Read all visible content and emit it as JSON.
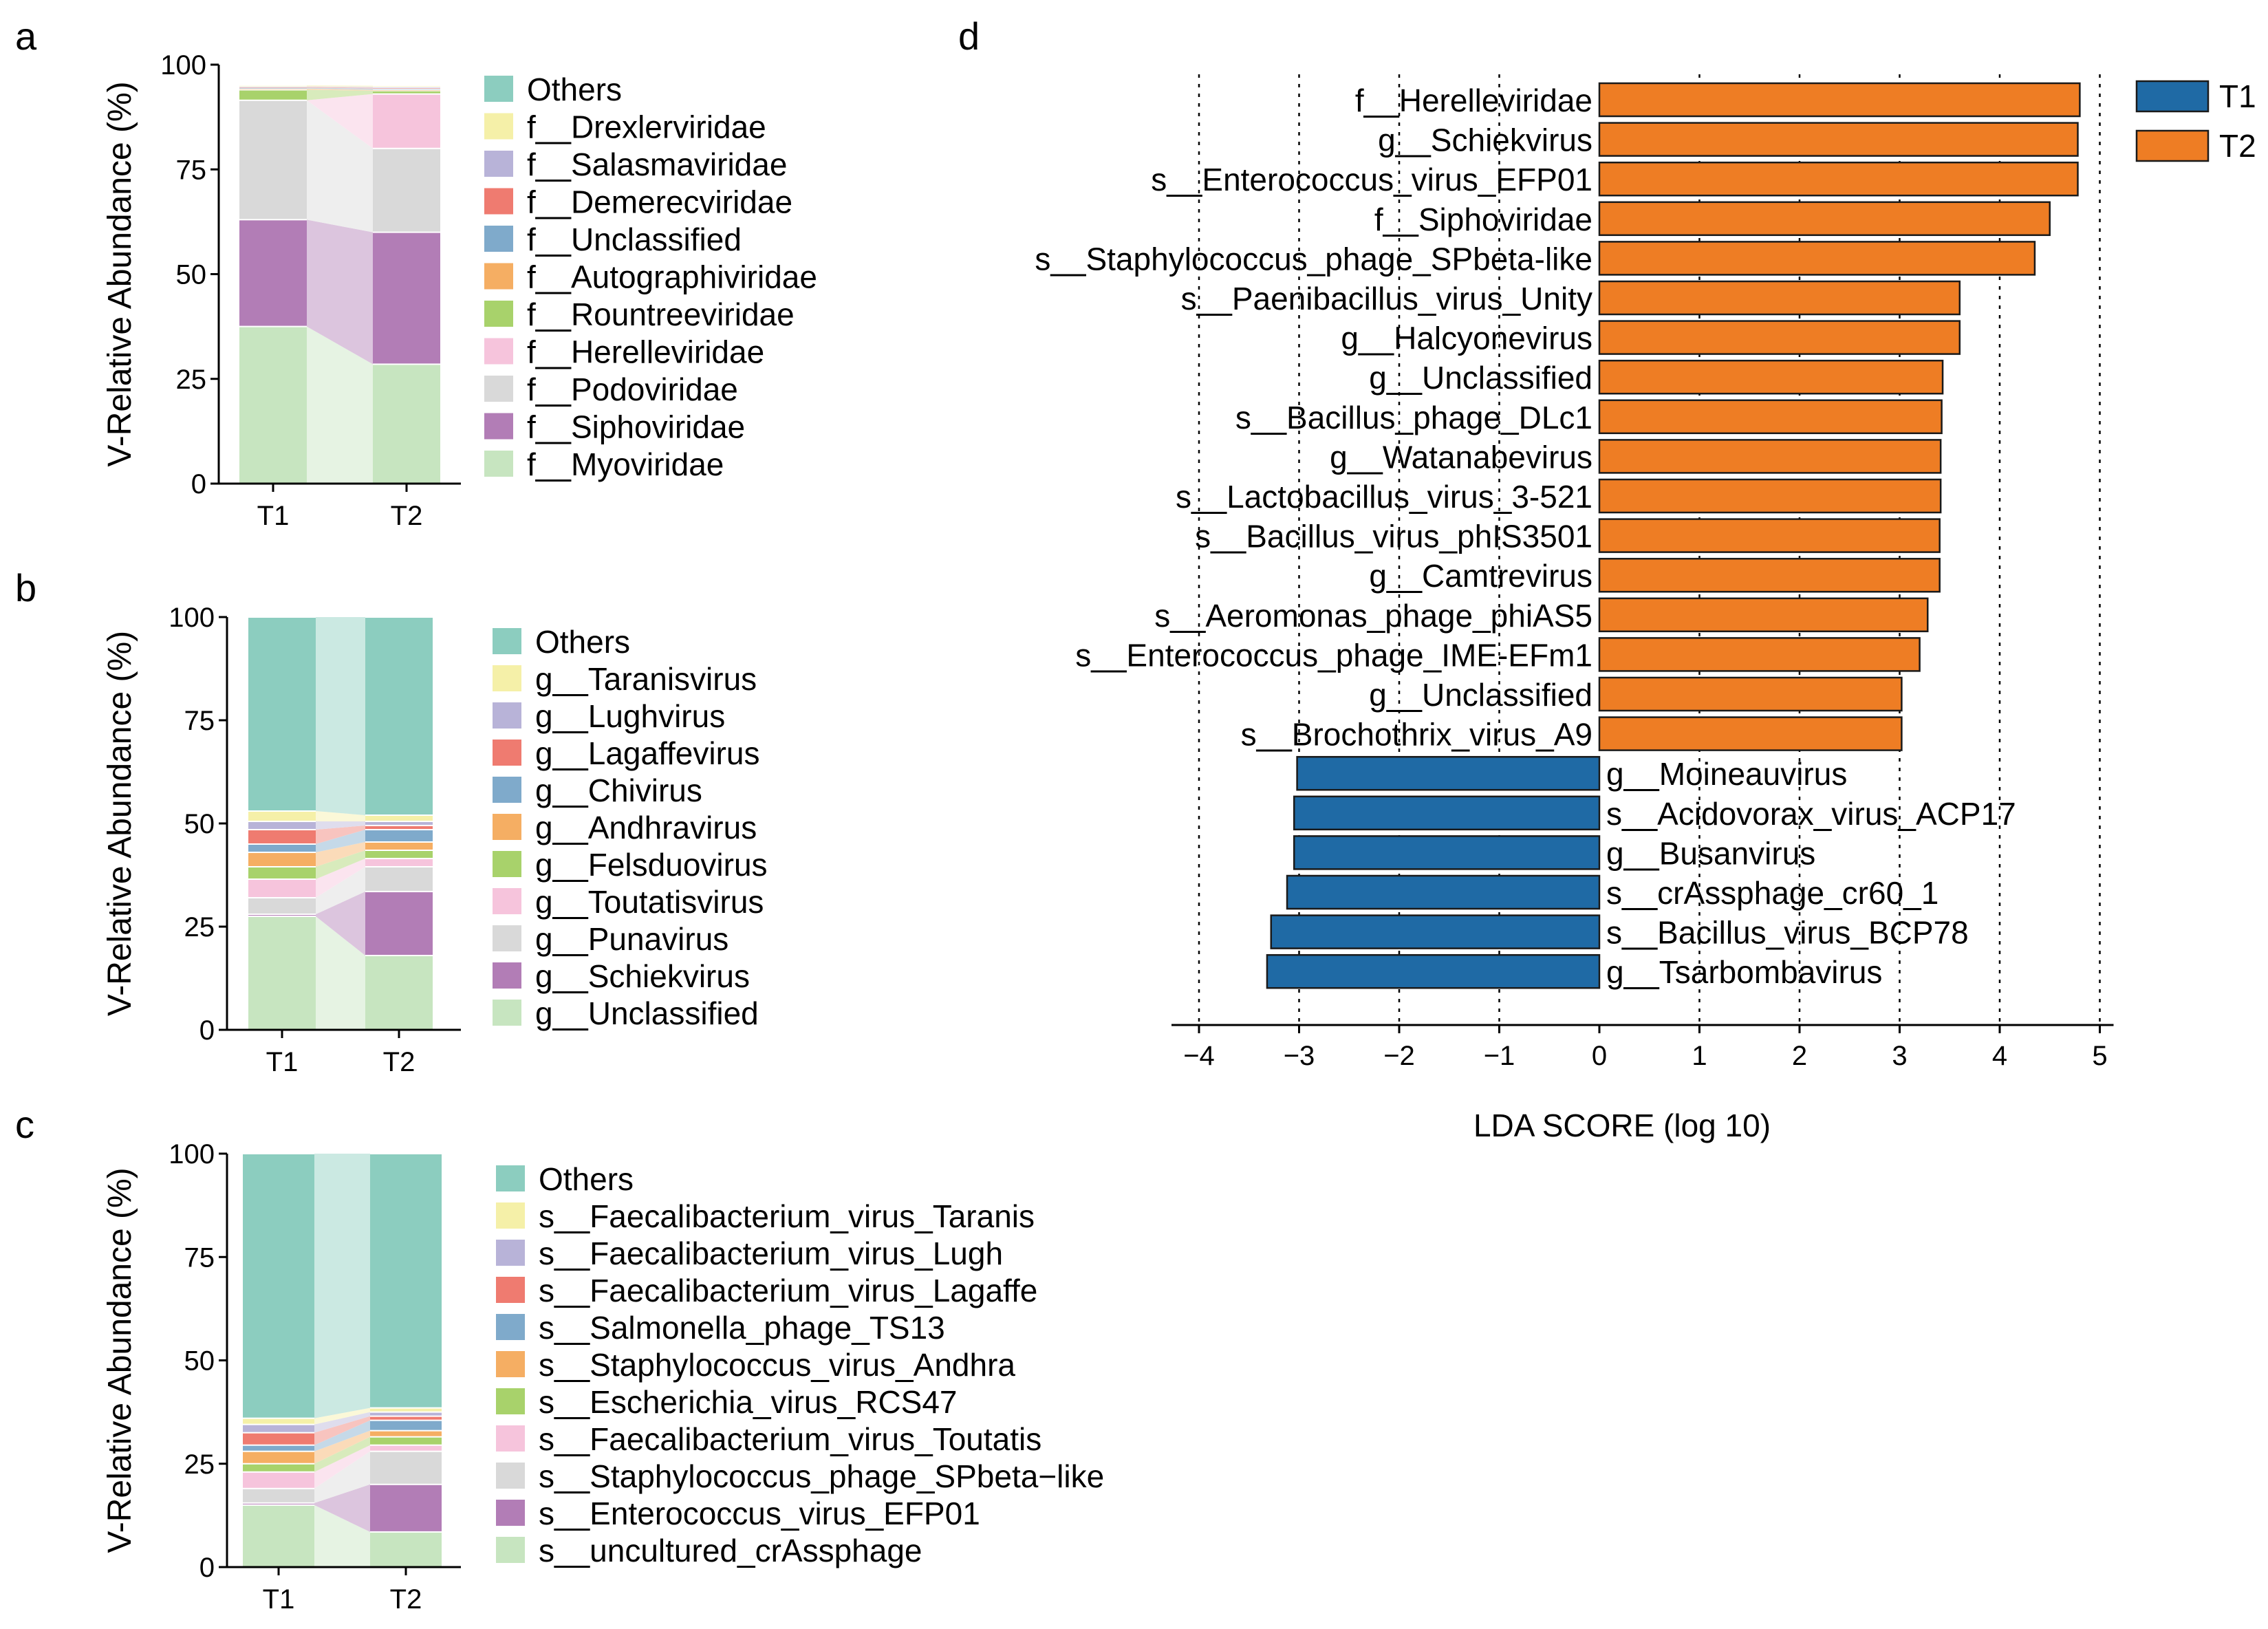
{
  "chart_data": [
    {
      "panel": "a",
      "type": "stacked-bar",
      "ylabel": "V-Relative Abundance (%)",
      "ylim": [
        0,
        100
      ],
      "yticks": [
        "0",
        "25",
        "50",
        "75",
        "100"
      ],
      "categories": [
        "T1",
        "T2"
      ],
      "legend_title": "",
      "series": [
        {
          "name": "f__Myoviridae",
          "color": "#c7e5c0",
          "values": [
            37.5,
            28.5
          ]
        },
        {
          "name": "f__Siphoviridae",
          "color": "#b27db6",
          "values": [
            25.5,
            31.5
          ]
        },
        {
          "name": "f__Podoviridae",
          "color": "#d9d9d9",
          "values": [
            28.5,
            20.0
          ]
        },
        {
          "name": "f__Herelleviridae",
          "color": "#f6c4dc",
          "values": [
            0.0,
            13.0
          ]
        },
        {
          "name": "f__Rountreeviridae",
          "color": "#a8d26b",
          "values": [
            2.5,
            0.8
          ]
        },
        {
          "name": "f__Autographiviridae",
          "color": "#f5ae63",
          "values": [
            0.3,
            0.2
          ]
        },
        {
          "name": "f__Unclassified",
          "color": "#7faacb",
          "values": [
            0.2,
            0.3
          ]
        },
        {
          "name": "f__Demerecviridae",
          "color": "#ef7b70",
          "values": [
            0.2,
            0.2
          ]
        },
        {
          "name": "f__Salasmaviridae",
          "color": "#b8b3d8",
          "values": [
            0.1,
            0.2
          ]
        },
        {
          "name": "f__Drexlerviridae",
          "color": "#f5f0a8",
          "values": [
            0.3,
            0.3
          ]
        },
        {
          "name": "Others",
          "color": "#8ccdbf",
          "values": [
            0.0,
            0.0
          ]
        }
      ]
    },
    {
      "panel": "b",
      "type": "stacked-bar",
      "ylabel": "V-Relative Abundance (%)",
      "ylim": [
        0,
        100
      ],
      "yticks": [
        "0",
        "25",
        "50",
        "75",
        "100"
      ],
      "categories": [
        "T1",
        "T2"
      ],
      "series": [
        {
          "name": "g__Unclassified",
          "color": "#c7e5c0",
          "values": [
            27.5,
            18.0
          ]
        },
        {
          "name": "g__Schiekvirus",
          "color": "#b27db6",
          "values": [
            0.5,
            15.5
          ]
        },
        {
          "name": "g__Punavirus",
          "color": "#d9d9d9",
          "values": [
            4.0,
            6.0
          ]
        },
        {
          "name": "g__Toutatisvirus",
          "color": "#f6c4dc",
          "values": [
            4.5,
            2.0
          ]
        },
        {
          "name": "g__Felsduovirus",
          "color": "#a8d26b",
          "values": [
            3.0,
            2.0
          ]
        },
        {
          "name": "g__Andhravirus",
          "color": "#f5ae63",
          "values": [
            3.5,
            2.0
          ]
        },
        {
          "name": "g__Chivirus",
          "color": "#7faacb",
          "values": [
            2.0,
            3.0
          ]
        },
        {
          "name": "g__Lagaffevirus",
          "color": "#ef7b70",
          "values": [
            3.5,
            1.0
          ]
        },
        {
          "name": "g__Lughvirus",
          "color": "#b8b3d8",
          "values": [
            2.0,
            1.0
          ]
        },
        {
          "name": "g__Taranisvirus",
          "color": "#f5f0a8",
          "values": [
            2.5,
            1.5
          ]
        },
        {
          "name": "Others",
          "color": "#8ccdbf",
          "values": [
            47.0,
            48.0
          ]
        }
      ]
    },
    {
      "panel": "c",
      "type": "stacked-bar",
      "ylabel": "V-Relative Abundance (%)",
      "ylim": [
        0,
        100
      ],
      "yticks": [
        "0",
        "25",
        "50",
        "75",
        "100"
      ],
      "categories": [
        "T1",
        "T2"
      ],
      "series": [
        {
          "name": "s__uncultured_crAssphage",
          "color": "#c7e5c0",
          "values": [
            15.0,
            8.5
          ]
        },
        {
          "name": "s__Enterococcus_virus_EFP01",
          "color": "#b27db6",
          "values": [
            0.5,
            11.5
          ]
        },
        {
          "name": "s__Staphylococcus_phage_SPbeta−like",
          "color": "#d9d9d9",
          "values": [
            3.5,
            8.0
          ]
        },
        {
          "name": "s__Faecalibacterium_virus_Toutatis",
          "color": "#f6c4dc",
          "values": [
            4.0,
            1.5
          ]
        },
        {
          "name": "s__Escherichia_virus_RCS47",
          "color": "#a8d26b",
          "values": [
            2.0,
            2.0
          ]
        },
        {
          "name": "s__Staphylococcus_virus_Andhra",
          "color": "#f5ae63",
          "values": [
            3.0,
            1.5
          ]
        },
        {
          "name": "s__Salmonella_phage_TS13",
          "color": "#7faacb",
          "values": [
            1.5,
            2.5
          ]
        },
        {
          "name": "s__Faecalibacterium_virus_Lagaffe",
          "color": "#ef7b70",
          "values": [
            3.0,
            1.0
          ]
        },
        {
          "name": "s__Faecalibacterium_virus_Lugh",
          "color": "#b8b3d8",
          "values": [
            2.0,
            1.0
          ]
        },
        {
          "name": "s__Faecalibacterium_virus_Taranis",
          "color": "#f5f0a8",
          "values": [
            1.5,
            1.0
          ]
        },
        {
          "name": "Others",
          "color": "#8ccdbf",
          "values": [
            64.0,
            61.5
          ]
        }
      ]
    },
    {
      "panel": "d",
      "type": "bar",
      "orientation": "horizontal",
      "xlabel": "LDA SCORE (log 10)",
      "xlim": [
        -4.3,
        5.1
      ],
      "xticks": [
        -4,
        -3,
        -2,
        -1,
        0,
        1,
        2,
        3,
        4,
        5
      ],
      "xtick_labels": [
        "−4",
        "−3",
        "−2",
        "−1",
        "0",
        "1",
        "2",
        "3",
        "4",
        "5"
      ],
      "grid": "vertical dotted",
      "legend": [
        {
          "name": "T1",
          "color": "#1f6aa5"
        },
        {
          "name": "T2",
          "color": "#ee7d24"
        }
      ],
      "legend_position": "top-right",
      "categories": [
        "f__Herelleviridae",
        "g__Schiekvirus",
        "s__Enterococcus_virus_EFP01",
        "f__Siphoviridae",
        "s__Staphylococcus_phage_SPbeta-like",
        "s__Paenibacillus_virus_Unity",
        "g__Halcyonevirus",
        "g__Unclassified",
        "s__Bacillus_phage_DLc1",
        "g__Watanabevirus",
        "s__Lactobacillus_virus_3-521",
        "s__Bacillus_virus_phIS3501",
        "g__Camtrevirus",
        "s__Aeromonas_phage_phiAS5",
        "s__Enterococcus_phage_IME-EFm1",
        "g__Unclassified",
        "s__Brochothrix_virus_A9",
        "g__Moineauvirus",
        "s__Acidovorax_virus_ACP17",
        "g__Busanvirus",
        "s__crAssphage_cr60_1",
        "s__Bacillus_virus_BCP78",
        "g__Tsarbombavirus"
      ],
      "groups": [
        "T2",
        "T2",
        "T2",
        "T2",
        "T2",
        "T2",
        "T2",
        "T2",
        "T2",
        "T2",
        "T2",
        "T2",
        "T2",
        "T2",
        "T2",
        "T2",
        "T2",
        "T1",
        "T1",
        "T1",
        "T1",
        "T1",
        "T1"
      ],
      "values": [
        4.8,
        4.78,
        4.78,
        4.5,
        4.35,
        3.6,
        3.6,
        3.43,
        3.42,
        3.41,
        3.41,
        3.4,
        3.4,
        3.28,
        3.2,
        3.02,
        3.02,
        -3.02,
        -3.05,
        -3.05,
        -3.12,
        -3.28,
        -3.32
      ]
    }
  ],
  "panel_letters": [
    "a",
    "b",
    "c",
    "d"
  ]
}
